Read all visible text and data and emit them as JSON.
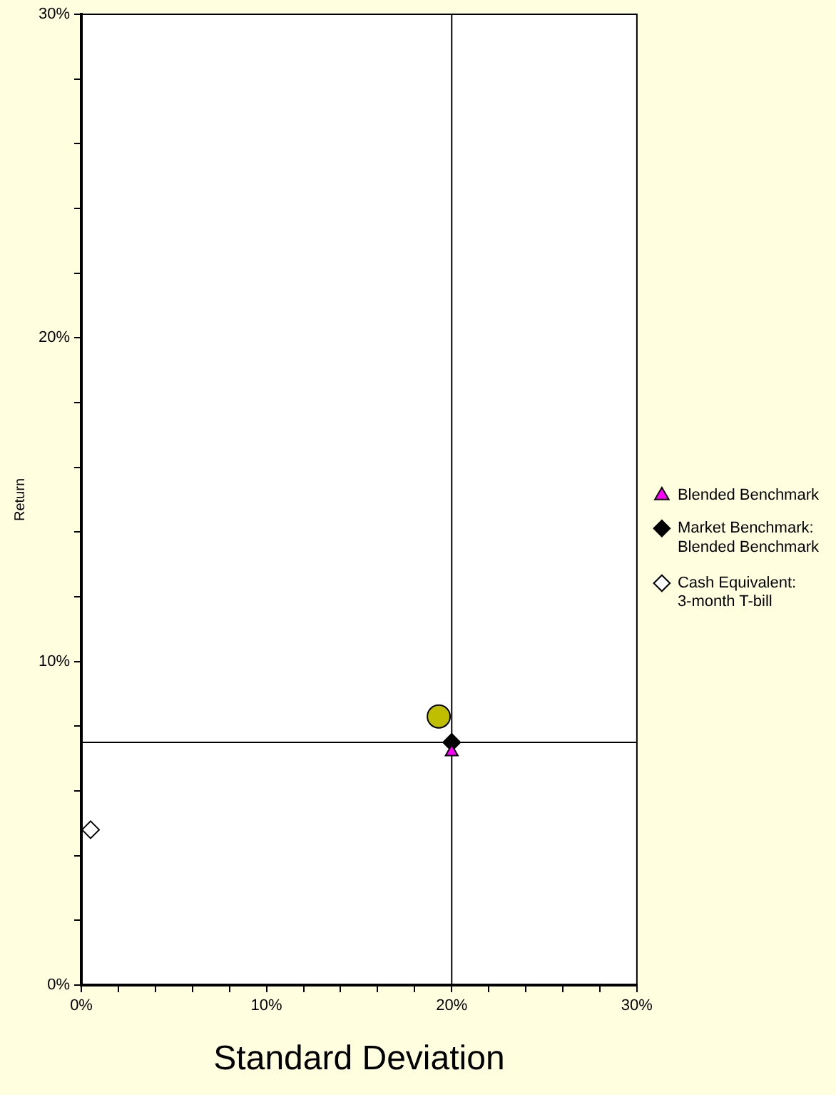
{
  "chart_data": {
    "type": "scatter",
    "xlabel": "Standard Deviation",
    "ylabel": "Return",
    "xlim": [
      0,
      30
    ],
    "ylim": [
      0,
      30
    ],
    "xticks": [
      {
        "value": 0,
        "label": "0%"
      },
      {
        "value": 2,
        "label": null
      },
      {
        "value": 4,
        "label": null
      },
      {
        "value": 6,
        "label": null
      },
      {
        "value": 8,
        "label": null
      },
      {
        "value": 10,
        "label": "10%"
      },
      {
        "value": 12,
        "label": null
      },
      {
        "value": 14,
        "label": null
      },
      {
        "value": 16,
        "label": null
      },
      {
        "value": 18,
        "label": null
      },
      {
        "value": 20,
        "label": "20%"
      },
      {
        "value": 22,
        "label": null
      },
      {
        "value": 24,
        "label": null
      },
      {
        "value": 26,
        "label": null
      },
      {
        "value": 28,
        "label": null
      },
      {
        "value": 30,
        "label": "30%"
      }
    ],
    "yticks": [
      {
        "value": 0,
        "label": "0%"
      },
      {
        "value": 2,
        "label": null
      },
      {
        "value": 4,
        "label": null
      },
      {
        "value": 6,
        "label": null
      },
      {
        "value": 8,
        "label": null
      },
      {
        "value": 10,
        "label": "10%"
      },
      {
        "value": 12,
        "label": null
      },
      {
        "value": 14,
        "label": null
      },
      {
        "value": 16,
        "label": null
      },
      {
        "value": 18,
        "label": null
      },
      {
        "value": 20,
        "label": "20%"
      },
      {
        "value": 22,
        "label": null
      },
      {
        "value": 24,
        "label": null
      },
      {
        "value": 26,
        "label": null
      },
      {
        "value": 28,
        "label": null
      },
      {
        "value": 30,
        "label": "30%"
      }
    ],
    "legend": "right",
    "series": [
      {
        "color": "#bfbf00",
        "marker": "circle",
        "x": [
          19.3
        ],
        "values": [
          8.3
        ]
      },
      {
        "name": "Blended Benchmark",
        "color": "#ff00ff",
        "marker": "triangle",
        "x": [
          20.0
        ],
        "values": [
          7.2
        ]
      },
      {
        "name": "Market Benchmark: Blended Benchmark",
        "color": "#000000",
        "marker": "diamond",
        "x": [
          20.0
        ],
        "values": [
          7.5
        ]
      },
      {
        "name": "Cash Equivalent: 3-month T-bill",
        "color": "#ffffff",
        "marker": "diamond",
        "x": [
          0.5
        ],
        "values": [
          4.8
        ]
      }
    ],
    "ref_lines": [
      {
        "axis": "x",
        "value": 20
      },
      {
        "axis": "y",
        "value": 7.5
      }
    ]
  }
}
